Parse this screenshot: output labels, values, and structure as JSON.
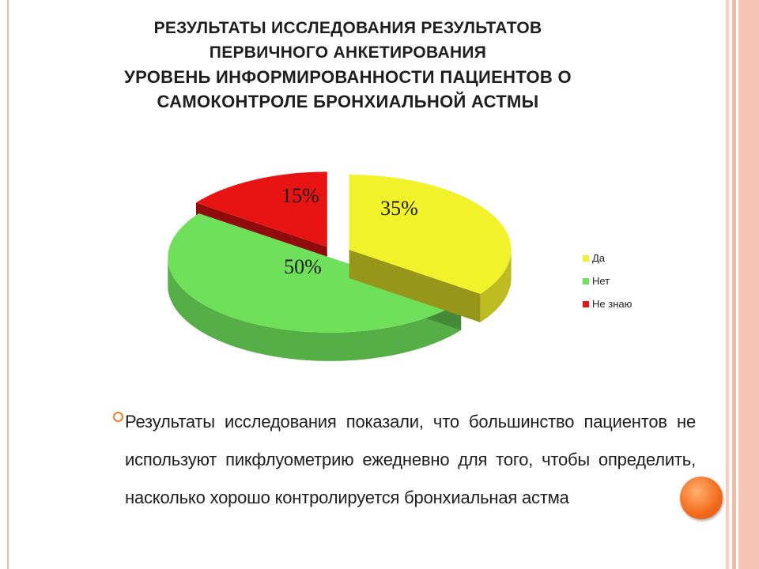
{
  "title": {
    "line1": "РЕЗУЛЬТАТЫ ИССЛЕДОВАНИЯ РЕЗУЛЬТАТОВ",
    "line2": "ПЕРВИЧНОГО АНКЕТИРОВАНИЯ",
    "line3": "УРОВЕНЬ ИНФОРМИРОВАННОСТИ ПАЦИЕНТОВ О",
    "line4": "САМОКОНТРОЛЕ БРОНХИАЛЬНОЙ АСТМЫ"
  },
  "chart_data": {
    "type": "pie",
    "title": "",
    "categories": [
      "Да",
      "Нет",
      "Не знаю"
    ],
    "values": [
      35,
      50,
      15
    ],
    "data_labels": [
      "35%",
      "50%",
      "15%"
    ],
    "colors": [
      "#f2f22b",
      "#6ee05a",
      "#e81313"
    ],
    "legend_position": "right",
    "exploded": true,
    "style": "3d"
  },
  "legend": {
    "items": [
      "Да",
      "Нет",
      "Не знаю"
    ]
  },
  "bullet": {
    "text": "Результаты исследования показали, что большинство пациентов не используют пикфлуометрию ежедневно для того, чтобы определить, насколько хорошо контролируется бронхиальная астма"
  },
  "colors": {
    "accent": "#f07d28",
    "right_band": "#f3bfae"
  }
}
